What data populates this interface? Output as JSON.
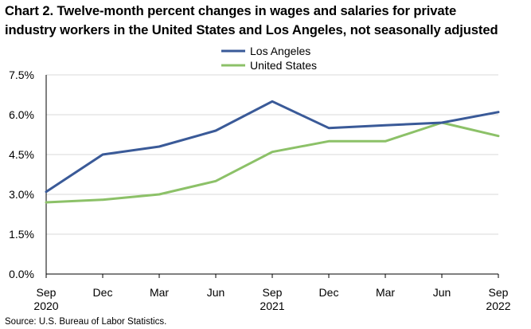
{
  "chart_data": {
    "type": "line",
    "title_lines": [
      "Chart 2. Twelve-month percent changes in wages and salaries for private",
      "industry workers in the United States and Los Angeles, not seasonally adjusted"
    ],
    "categories": [
      "Sep",
      "Dec",
      "Mar",
      "Jun",
      "Sep",
      "Dec",
      "Mar",
      "Jun",
      "Sep"
    ],
    "category_years": [
      "2020",
      "",
      "",
      "",
      "2021",
      "",
      "",
      "",
      "2022"
    ],
    "series": [
      {
        "name": "Los Angeles",
        "color": "#3A5A98",
        "values": [
          3.1,
          4.5,
          4.8,
          5.4,
          6.5,
          5.5,
          5.6,
          5.7,
          6.1
        ]
      },
      {
        "name": "United States",
        "color": "#8CC168",
        "values": [
          2.7,
          2.8,
          3.0,
          3.5,
          4.6,
          5.0,
          5.0,
          5.7,
          5.2
        ]
      }
    ],
    "y_ticks": [
      0,
      1.5,
      3.0,
      4.5,
      6.0,
      7.5
    ],
    "y_tick_labels": [
      "0.0%",
      "1.5%",
      "3.0%",
      "4.5%",
      "6.0%",
      "7.5%"
    ],
    "ylim": [
      0,
      7.5
    ],
    "xlabel": "",
    "ylabel": "",
    "grid": true,
    "legend_position": "top-center",
    "source": "Source: U.S. Bureau of Labor Statistics."
  }
}
